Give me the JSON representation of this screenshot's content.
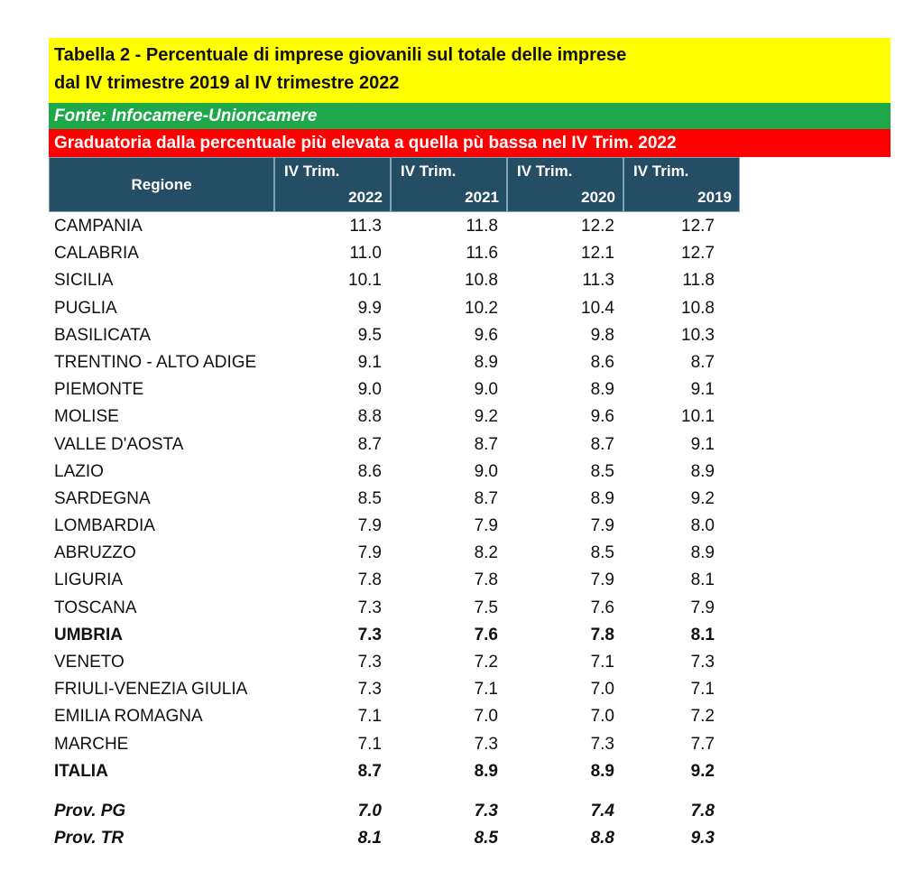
{
  "title_line1": "Tabella 2 - Percentuale di imprese giovanili sul totale delle imprese",
  "title_line2": "dal IV trimestre 2019 al IV trimestre 2022",
  "source": "Fonte: Infocamere-Unioncamere",
  "ranking_note": "Graduatoria dalla percentuale più elevata a quella pù bassa nel IV Trim. 2022",
  "header": {
    "region": "Regione",
    "columns": [
      {
        "line1": "IV Trim.",
        "line2": "2022"
      },
      {
        "line1": "IV Trim.",
        "line2": "2021"
      },
      {
        "line1": "IV Trim.",
        "line2": "2020"
      },
      {
        "line1": "IV Trim.",
        "line2": "2019"
      }
    ]
  },
  "rows": [
    {
      "name": "CAMPANIA",
      "values": [
        "11.3",
        "11.8",
        "12.2",
        "12.7"
      ]
    },
    {
      "name": "CALABRIA",
      "values": [
        "11.0",
        "11.6",
        "12.1",
        "12.7"
      ]
    },
    {
      "name": "SICILIA",
      "values": [
        "10.1",
        "10.8",
        "11.3",
        "11.8"
      ]
    },
    {
      "name": "PUGLIA",
      "values": [
        "9.9",
        "10.2",
        "10.4",
        "10.8"
      ]
    },
    {
      "name": "BASILICATA",
      "values": [
        "9.5",
        "9.6",
        "9.8",
        "10.3"
      ]
    },
    {
      "name": "TRENTINO - ALTO ADIGE",
      "values": [
        "9.1",
        "8.9",
        "8.6",
        "8.7"
      ]
    },
    {
      "name": "PIEMONTE",
      "values": [
        "9.0",
        "9.0",
        "8.9",
        "9.1"
      ]
    },
    {
      "name": "MOLISE",
      "values": [
        "8.8",
        "9.2",
        "9.6",
        "10.1"
      ]
    },
    {
      "name": "VALLE D'AOSTA",
      "values": [
        "8.7",
        "8.7",
        "8.7",
        "9.1"
      ]
    },
    {
      "name": "LAZIO",
      "values": [
        "8.6",
        "9.0",
        "8.5",
        "8.9"
      ]
    },
    {
      "name": "SARDEGNA",
      "values": [
        "8.5",
        "8.7",
        "8.9",
        "9.2"
      ]
    },
    {
      "name": "LOMBARDIA",
      "values": [
        "7.9",
        "7.9",
        "7.9",
        "8.0"
      ]
    },
    {
      "name": "ABRUZZO",
      "values": [
        "7.9",
        "8.2",
        "8.5",
        "8.9"
      ]
    },
    {
      "name": "LIGURIA",
      "values": [
        "7.8",
        "7.8",
        "7.9",
        "8.1"
      ]
    },
    {
      "name": "TOSCANA",
      "values": [
        "7.3",
        "7.5",
        "7.6",
        "7.9"
      ]
    },
    {
      "name": "UMBRIA",
      "values": [
        "7.3",
        "7.6",
        "7.8",
        "8.1"
      ],
      "style": "bold"
    },
    {
      "name": "VENETO",
      "values": [
        "7.3",
        "7.2",
        "7.1",
        "7.3"
      ]
    },
    {
      "name": "FRIULI-VENEZIA GIULIA",
      "values": [
        "7.3",
        "7.1",
        "7.0",
        "7.1"
      ]
    },
    {
      "name": "EMILIA ROMAGNA",
      "values": [
        "7.1",
        "7.0",
        "7.0",
        "7.2"
      ]
    },
    {
      "name": "MARCHE",
      "values": [
        "7.1",
        "7.3",
        "7.3",
        "7.7"
      ]
    },
    {
      "name": "ITALIA",
      "values": [
        "8.7",
        "8.9",
        "8.9",
        "9.2"
      ],
      "style": "bold"
    }
  ],
  "provinces": [
    {
      "name": "Prov. PG",
      "values": [
        "7.0",
        "7.3",
        "7.4",
        "7.8"
      ]
    },
    {
      "name": "Prov. TR",
      "values": [
        "8.1",
        "8.5",
        "8.8",
        "9.3"
      ]
    }
  ]
}
